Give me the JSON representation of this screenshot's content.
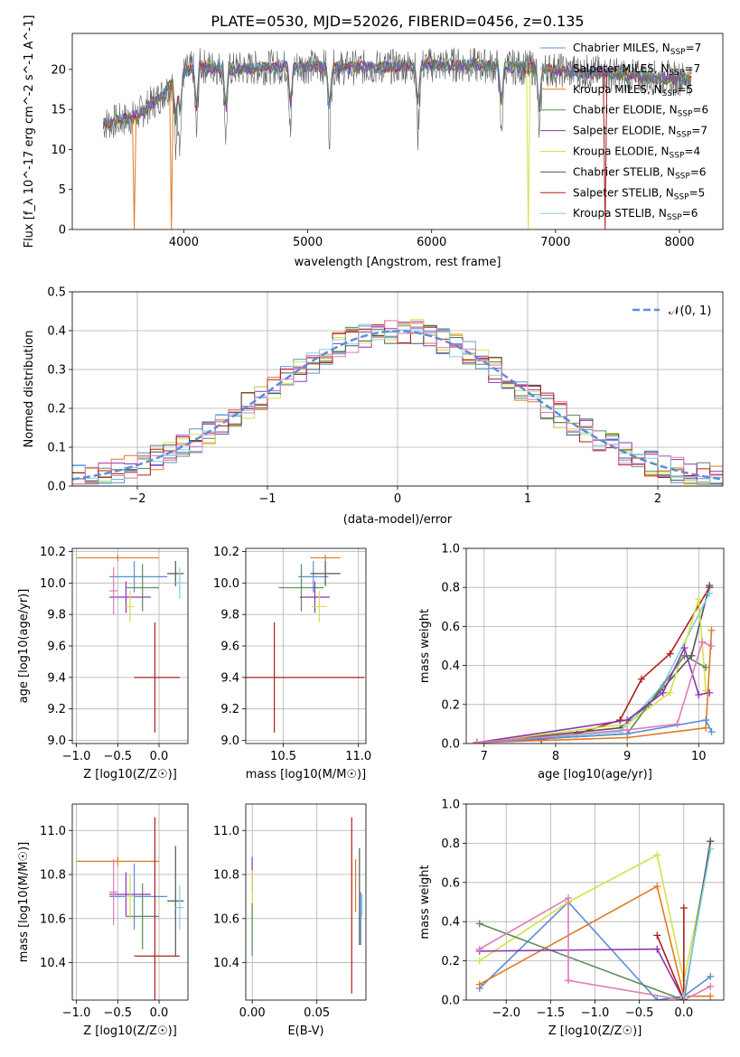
{
  "figure": {
    "title": "PLATE=0530, MJD=52026, FIBERID=0456, z=0.135"
  },
  "palette": {
    "Chabrier MILES": "#5b8ed6",
    "Salpeter MILES": "#e07a1f",
    "Kroupa MILES": "#e07a1f",
    "Chabrier ELODIE": "#5c8a5c",
    "Salpeter ELODIE": "#8e35b5",
    "Kroupa ELODIE": "#d4e04a",
    "Chabrier STELIB": "#555555",
    "Salpeter STELIB": "#b01c1c",
    "Kroupa STELIB": "#7ecfe0",
    "pink": "#e07ab8",
    "normal_curve": "#5b8ed6"
  },
  "chart_data": [
    {
      "type": "line",
      "panel": "spectrum",
      "xlabel": "wavelength [Angstrom, rest frame]",
      "ylabel": "Flux [f_λ 10^-17 erg cm^-2 s^-1 A^-1]",
      "xlim": [
        3100,
        8350
      ],
      "ylim": [
        0,
        24.5
      ],
      "xticks": [
        4000,
        5000,
        6000,
        7000,
        8000
      ],
      "yticks": [
        0,
        5,
        10,
        15,
        20
      ],
      "grid": false,
      "legend_position": "right",
      "legend": [
        {
          "name": "Chabrier MILES",
          "nssp": "N_SSP=7"
        },
        {
          "name": "Salpeter MILES",
          "nssp": "N_SSP=7"
        },
        {
          "name": "Kroupa MILES",
          "nssp": "N_SSP=5"
        },
        {
          "name": "Chabrier ELODIE",
          "nssp": "N_SSP=6"
        },
        {
          "name": "Salpeter ELODIE",
          "nssp": "N_SSP=7"
        },
        {
          "name": "Kroupa ELODIE",
          "nssp": "N_SSP=4"
        },
        {
          "name": "Chabrier STELIB",
          "nssp": "N_SSP=6"
        },
        {
          "name": "Salpeter STELIB",
          "nssp": "N_SSP=5"
        },
        {
          "name": "Kroupa STELIB",
          "nssp": "N_SSP=6"
        }
      ],
      "continuum": {
        "x": [
          3350,
          3600,
          3800,
          3950,
          4100,
          4400,
          4700,
          5000,
          5300,
          5600,
          5900,
          6200,
          6500,
          6800,
          7100,
          7400,
          7700,
          8000,
          8100
        ],
        "y": [
          13.2,
          14.0,
          16.5,
          19.0,
          20.5,
          20.0,
          20.3,
          20.4,
          20.2,
          20.3,
          20.5,
          20.6,
          20.4,
          20.2,
          19.8,
          19.5,
          19.0,
          18.9,
          18.8
        ]
      },
      "dips": [
        {
          "x": 3600,
          "series": "Kroupa MILES",
          "to": 0
        },
        {
          "x": 3900,
          "series": "Kroupa MILES",
          "to": 0
        },
        {
          "x": 6780,
          "series": "Kroupa ELODIE",
          "to": 0
        },
        {
          "x": 7400,
          "series": "Salpeter STELIB",
          "to": 0
        }
      ]
    },
    {
      "type": "histogram",
      "panel": "residuals",
      "xlabel": "(data-model)/error",
      "ylabel": "Normed distribution",
      "xlim": [
        -2.5,
        2.5
      ],
      "ylim": [
        0,
        0.5
      ],
      "xticks": [
        -2,
        -1,
        0,
        1,
        2
      ],
      "yticks": [
        0.0,
        0.1,
        0.2,
        0.3,
        0.4,
        0.5
      ],
      "grid": true,
      "bin_width": 0.1,
      "legend_position": "top-right",
      "legend": [
        "𝒩(0, 1)"
      ],
      "curve": {
        "name": "𝒩(0, 1)",
        "mean": 0,
        "sigma": 1
      }
    },
    {
      "type": "scatter",
      "panel": "age-Z",
      "xlabel": "Z [log10(Z/Z☉)]",
      "ylabel": "age [log10(age/yr)]",
      "xlim": [
        -1.05,
        0.35
      ],
      "ylim": [
        8.98,
        10.22
      ],
      "xticks": [
        -1.0,
        -0.5,
        0.0
      ],
      "yticks": [
        9.0,
        9.2,
        9.4,
        9.6,
        9.8,
        10.0,
        10.2
      ],
      "grid": true,
      "points": [
        {
          "series": "Salpeter MILES",
          "x": -0.5,
          "y": 10.16,
          "xerr": [
            0.5,
            0.5
          ],
          "yerr": [
            0.02,
            0.02
          ]
        },
        {
          "series": "Chabrier MILES",
          "x": -0.3,
          "y": 10.04,
          "xerr": [
            0.3,
            0.4
          ],
          "yerr": [
            0.1,
            0.1
          ]
        },
        {
          "series": "Chabrier STELIB",
          "x": 0.2,
          "y": 10.06,
          "xerr": [
            0.1,
            0.1
          ],
          "yerr": [
            0.08,
            0.08
          ]
        },
        {
          "series": "Kroupa STELIB",
          "x": 0.25,
          "y": 10.0,
          "xerr": [
            0.05,
            0.05
          ],
          "yerr": [
            0.1,
            0.1
          ]
        },
        {
          "series": "Chabrier ELODIE",
          "x": -0.2,
          "y": 9.97,
          "xerr": [
            0.2,
            0.2
          ],
          "yerr": [
            0.15,
            0.15
          ]
        },
        {
          "series": "Salpeter ELODIE",
          "x": -0.4,
          "y": 9.91,
          "xerr": [
            0.2,
            0.3
          ],
          "yerr": [
            0.1,
            0.1
          ]
        },
        {
          "series": "pink",
          "x": -0.55,
          "y": 9.95,
          "xerr": [
            0.05,
            0.05
          ],
          "yerr": [
            0.15,
            0.15
          ]
        },
        {
          "series": "Kroupa ELODIE",
          "x": -0.35,
          "y": 9.85,
          "xerr": [
            0.05,
            0.05
          ],
          "yerr": [
            0.1,
            0.1
          ]
        },
        {
          "series": "Salpeter STELIB",
          "x": -0.05,
          "y": 9.4,
          "xerr": [
            0.25,
            0.3
          ],
          "yerr": [
            0.35,
            0.35
          ]
        }
      ]
    },
    {
      "type": "scatter",
      "panel": "age-mass",
      "xlabel": "mass [log10(M/M☉)]",
      "ylabel": "",
      "xlim": [
        10.25,
        11.05
      ],
      "ylim": [
        8.98,
        10.22
      ],
      "xticks": [
        10.5,
        11.0
      ],
      "yticks": [
        9.0,
        9.2,
        9.4,
        9.6,
        9.8,
        10.0,
        10.2
      ],
      "grid": true,
      "points": [
        {
          "series": "Salpeter MILES",
          "x": 10.78,
          "y": 10.16,
          "xerr": [
            0.1,
            0.1
          ],
          "yerr": [
            0.02,
            0.02
          ]
        },
        {
          "series": "Chabrier MILES",
          "x": 10.7,
          "y": 10.04,
          "xerr": [
            0.1,
            0.1
          ],
          "yerr": [
            0.1,
            0.1
          ]
        },
        {
          "series": "Chabrier STELIB",
          "x": 10.78,
          "y": 10.06,
          "xerr": [
            0.1,
            0.1
          ],
          "yerr": [
            0.08,
            0.08
          ]
        },
        {
          "series": "Chabrier ELODIE",
          "x": 10.62,
          "y": 9.97,
          "xerr": [
            0.15,
            0.15
          ],
          "yerr": [
            0.15,
            0.15
          ]
        },
        {
          "series": "Salpeter ELODIE",
          "x": 10.71,
          "y": 9.91,
          "xerr": [
            0.1,
            0.1
          ],
          "yerr": [
            0.1,
            0.1
          ]
        },
        {
          "series": "Kroupa ELODIE",
          "x": 10.74,
          "y": 9.85,
          "xerr": [
            0.05,
            0.05
          ],
          "yerr": [
            0.1,
            0.1
          ]
        },
        {
          "series": "Salpeter STELIB",
          "x": 10.44,
          "y": 9.4,
          "xerr": [
            0.2,
            0.6
          ],
          "yerr": [
            0.35,
            0.35
          ]
        }
      ]
    },
    {
      "type": "line",
      "panel": "weight-age",
      "xlabel": "age [log10(age/yr)]",
      "ylabel": "mass weight",
      "xlim": [
        6.75,
        10.35
      ],
      "ylim": [
        0,
        1
      ],
      "xticks": [
        7,
        8,
        9,
        10
      ],
      "yticks": [
        0.0,
        0.2,
        0.4,
        0.6,
        0.8,
        1.0
      ],
      "grid": true,
      "series": [
        {
          "name": "Salpeter STELIB",
          "x": [
            6.9,
            7.8,
            8.3,
            8.9,
            9.2,
            9.6,
            10.15
          ],
          "y": [
            0.005,
            0.02,
            0.05,
            0.12,
            0.33,
            0.46,
            0.8
          ]
        },
        {
          "name": "Chabrier STELIB",
          "x": [
            6.9,
            8.9,
            9.3,
            9.9,
            10.15
          ],
          "y": [
            0.005,
            0.08,
            0.2,
            0.45,
            0.81
          ]
        },
        {
          "name": "Kroupa STELIB",
          "x": [
            6.9,
            8.9,
            9.5,
            10.15
          ],
          "y": [
            0.005,
            0.06,
            0.3,
            0.77
          ]
        },
        {
          "name": "Kroupa ELODIE",
          "x": [
            6.9,
            9.0,
            9.6,
            10.0,
            10.1
          ],
          "y": [
            0.005,
            0.1,
            0.26,
            0.74,
            0.27
          ]
        },
        {
          "name": "Chabrier ELODIE",
          "x": [
            6.9,
            9.0,
            9.8,
            10.1
          ],
          "y": [
            0.005,
            0.05,
            0.45,
            0.39
          ]
        },
        {
          "name": "Salpeter ELODIE",
          "x": [
            6.9,
            9.0,
            9.5,
            9.8,
            10.0,
            10.15
          ],
          "y": [
            0.005,
            0.12,
            0.26,
            0.49,
            0.25,
            0.26
          ]
        },
        {
          "name": "Salpeter MILES",
          "x": [
            6.9,
            9.0,
            10.1,
            10.18
          ],
          "y": [
            0.005,
            0.03,
            0.08,
            0.58
          ]
        },
        {
          "name": "Chabrier MILES",
          "x": [
            6.9,
            9.0,
            10.1,
            10.18
          ],
          "y": [
            0.005,
            0.05,
            0.12,
            0.06
          ]
        },
        {
          "name": "pink",
          "x": [
            6.9,
            9.0,
            9.7,
            10.05,
            10.18
          ],
          "y": [
            0.005,
            0.07,
            0.1,
            0.52,
            0.5
          ]
        }
      ]
    },
    {
      "type": "scatter",
      "panel": "mass-Z",
      "xlabel": "Z [log10(Z/Z☉)]",
      "ylabel": "mass [log10(M/M☉)]",
      "xlim": [
        -1.05,
        0.35
      ],
      "ylim": [
        10.23,
        11.12
      ],
      "xticks": [
        -1.0,
        -0.5,
        0.0
      ],
      "yticks": [
        10.4,
        10.6,
        10.8,
        11.0
      ],
      "grid": true,
      "points": [
        {
          "series": "Salpeter MILES",
          "x": -0.5,
          "y": 10.86,
          "xerr": [
            0.5,
            0.5
          ],
          "yerr": [
            0.02,
            0.02
          ]
        },
        {
          "series": "Chabrier MILES",
          "x": -0.3,
          "y": 10.7,
          "xerr": [
            0.3,
            0.4
          ],
          "yerr": [
            0.15,
            0.15
          ]
        },
        {
          "series": "Chabrier STELIB",
          "x": 0.2,
          "y": 10.68,
          "xerr": [
            0.1,
            0.1
          ],
          "yerr": [
            0.25,
            0.25
          ]
        },
        {
          "series": "Kroupa STELIB",
          "x": 0.25,
          "y": 10.65,
          "xerr": [
            0.05,
            0.05
          ],
          "yerr": [
            0.1,
            0.1
          ]
        },
        {
          "series": "Chabrier ELODIE",
          "x": -0.2,
          "y": 10.61,
          "xerr": [
            0.2,
            0.2
          ],
          "yerr": [
            0.15,
            0.15
          ]
        },
        {
          "series": "Salpeter ELODIE",
          "x": -0.4,
          "y": 10.71,
          "xerr": [
            0.2,
            0.3
          ],
          "yerr": [
            0.1,
            0.1
          ]
        },
        {
          "series": "pink",
          "x": -0.55,
          "y": 10.72,
          "xerr": [
            0.05,
            0.05
          ],
          "yerr": [
            0.15,
            0.15
          ]
        },
        {
          "series": "Kroupa ELODIE",
          "x": -0.35,
          "y": 10.7,
          "xerr": [
            0.05,
            0.05
          ],
          "yerr": [
            0.1,
            0.1
          ]
        },
        {
          "series": "Salpeter STELIB",
          "x": -0.05,
          "y": 10.43,
          "xerr": [
            0.25,
            0.3
          ],
          "yerr": [
            0.63,
            0.63
          ]
        }
      ]
    },
    {
      "type": "scatter",
      "panel": "mass-EBV",
      "xlabel": "E(B-V)",
      "ylabel": "",
      "xlim": [
        -0.005,
        0.088
      ],
      "ylim": [
        10.23,
        11.12
      ],
      "xticks": [
        0.0,
        0.05
      ],
      "yticks": [
        10.4,
        10.6,
        10.8,
        11.0
      ],
      "grid": true,
      "points": [
        {
          "series": "Salpeter STELIB",
          "x": 0.077,
          "y": 10.66,
          "yerr": [
            0.4,
            0.4
          ]
        },
        {
          "series": "Salpeter MILES",
          "x": 0.08,
          "y": 10.75,
          "yerr": [
            0.12,
            0.12
          ]
        },
        {
          "series": "Chabrier STELIB",
          "x": 0.083,
          "y": 10.7,
          "yerr": [
            0.22,
            0.22
          ]
        },
        {
          "series": "Chabrier MILES",
          "x": 0.084,
          "y": 10.6,
          "yerr": [
            0.12,
            0.12
          ]
        },
        {
          "series": "Kroupa STELIB",
          "x": 0.085,
          "y": 10.66,
          "yerr": [
            0.05,
            0.05
          ]
        },
        {
          "series": "Salpeter ELODIE",
          "x": 0.0,
          "y": 10.8,
          "yerr": [
            0.08,
            0.08
          ]
        },
        {
          "series": "Kroupa ELODIE",
          "x": 0.0,
          "y": 10.7,
          "yerr": [
            0.12,
            0.12
          ]
        },
        {
          "series": "Chabrier ELODIE",
          "x": 0.0,
          "y": 10.55,
          "yerr": [
            0.12,
            0.12
          ]
        }
      ]
    },
    {
      "type": "line",
      "panel": "weight-Z",
      "xlabel": "Z [log10(Z/Z☉)]",
      "ylabel": "mass weight",
      "xlim": [
        -2.45,
        0.45
      ],
      "ylim": [
        0,
        1
      ],
      "xticks": [
        -2.0,
        -1.5,
        -1.0,
        -0.5,
        0.0
      ],
      "yticks": [
        0.0,
        0.2,
        0.4,
        0.6,
        0.8,
        1.0
      ],
      "grid": true,
      "series": [
        {
          "name": "Chabrier MILES",
          "x": [
            -2.3,
            -1.3,
            -0.3,
            0.0,
            0.3
          ],
          "y": [
            0.06,
            0.5,
            0.0,
            0.02,
            0.12
          ]
        },
        {
          "name": "Salpeter MILES",
          "x": [
            -2.3,
            -0.3,
            0.0,
            0.3
          ],
          "y": [
            0.08,
            0.58,
            0.02,
            0.02
          ]
        },
        {
          "name": "Kroupa ELODIE",
          "x": [
            -2.3,
            -1.3,
            -0.3,
            0.0,
            0.3
          ],
          "y": [
            0.2,
            0.5,
            0.74,
            0.1,
            0.77
          ]
        },
        {
          "name": "Chabrier ELODIE",
          "x": [
            -2.3,
            0.0,
            0.3
          ],
          "y": [
            0.39,
            0.0,
            0.81
          ]
        },
        {
          "name": "Salpeter ELODIE",
          "x": [
            -2.3,
            -0.3,
            0.0
          ],
          "y": [
            0.25,
            0.26,
            0.0
          ]
        },
        {
          "name": "pink",
          "x": [
            -2.3,
            -1.3,
            -1.3,
            0.0,
            0.3
          ],
          "y": [
            0.26,
            0.52,
            0.1,
            0.0,
            0.07
          ]
        },
        {
          "name": "Salpeter STELIB",
          "x": [
            -0.3,
            0.0,
            0.0
          ],
          "y": [
            0.33,
            0.0,
            0.47
          ]
        },
        {
          "name": "Chabrier STELIB",
          "x": [
            0.0,
            0.3
          ],
          "y": [
            0.0,
            0.81
          ]
        },
        {
          "name": "Kroupa STELIB",
          "x": [
            0.0,
            0.3
          ],
          "y": [
            0.02,
            0.77
          ]
        }
      ]
    }
  ]
}
